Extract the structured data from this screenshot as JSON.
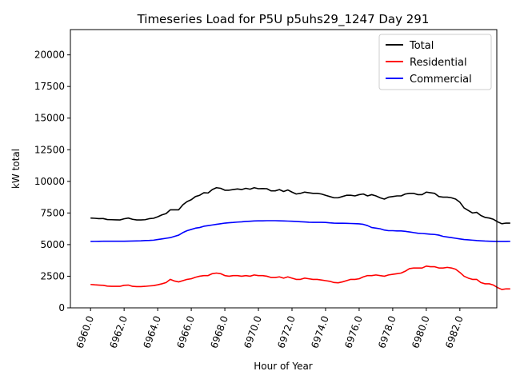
{
  "chart_data": {
    "type": "line",
    "title": "Timeseries Load for P5U p5uhs29_1247  Day 291",
    "xlabel": "Hour of Year",
    "ylabel": "kW total",
    "xlim": [
      6958.8,
      6984.2
    ],
    "ylim": [
      0,
      22000
    ],
    "x_ticks": [
      6960,
      6962,
      6964,
      6966,
      6968,
      6970,
      6972,
      6974,
      6976,
      6978,
      6980,
      6982
    ],
    "x_tick_labels": [
      "6960.0",
      "6962.0",
      "6964.0",
      "6966.0",
      "6968.0",
      "6970.0",
      "6972.0",
      "6974.0",
      "6976.0",
      "6978.0",
      "6980.0",
      "6982.0"
    ],
    "y_ticks": [
      0,
      2500,
      5000,
      7500,
      10000,
      12500,
      15000,
      17500,
      20000
    ],
    "y_tick_labels": [
      "0",
      "2500",
      "5000",
      "7500",
      "10000",
      "12500",
      "15000",
      "17500",
      "20000"
    ],
    "legend_position": "top-right",
    "x_start": 6960,
    "x_step": 0.25,
    "series": [
      {
        "name": "Total",
        "color": "#000000",
        "values": [
          7100,
          7080,
          7050,
          7060,
          6980,
          6970,
          6960,
          6950,
          7040,
          7100,
          7000,
          6950,
          6950,
          6970,
          7050,
          7080,
          7200,
          7350,
          7450,
          7750,
          7750,
          7750,
          8150,
          8400,
          8550,
          8800,
          8900,
          9100,
          9080,
          9350,
          9500,
          9450,
          9300,
          9300,
          9350,
          9400,
          9350,
          9450,
          9380,
          9500,
          9420,
          9430,
          9420,
          9250,
          9250,
          9350,
          9200,
          9320,
          9150,
          9000,
          9050,
          9150,
          9100,
          9050,
          9050,
          9000,
          8900,
          8800,
          8700,
          8700,
          8800,
          8900,
          8900,
          8850,
          8950,
          9000,
          8850,
          8950,
          8850,
          8700,
          8600,
          8750,
          8800,
          8850,
          8850,
          9000,
          9050,
          9050,
          8950,
          8950,
          9150,
          9100,
          9050,
          8800,
          8750,
          8750,
          8700,
          8600,
          8350,
          7900,
          7700,
          7500,
          7550,
          7300,
          7150,
          7100,
          7000,
          6800,
          6650,
          6700,
          6700
        ]
      },
      {
        "name": "Residential",
        "color": "#ff0000",
        "values": [
          1850,
          1820,
          1800,
          1780,
          1720,
          1700,
          1700,
          1700,
          1780,
          1800,
          1700,
          1680,
          1680,
          1700,
          1730,
          1760,
          1820,
          1900,
          2000,
          2250,
          2120,
          2050,
          2150,
          2250,
          2300,
          2420,
          2500,
          2550,
          2550,
          2700,
          2750,
          2700,
          2550,
          2500,
          2550,
          2550,
          2500,
          2550,
          2500,
          2600,
          2550,
          2550,
          2500,
          2400,
          2400,
          2450,
          2350,
          2450,
          2350,
          2250,
          2250,
          2350,
          2300,
          2250,
          2250,
          2200,
          2150,
          2100,
          2000,
          1980,
          2050,
          2150,
          2250,
          2250,
          2300,
          2450,
          2550,
          2550,
          2600,
          2550,
          2500,
          2600,
          2650,
          2700,
          2750,
          2900,
          3100,
          3150,
          3150,
          3150,
          3300,
          3250,
          3250,
          3150,
          3150,
          3200,
          3150,
          3050,
          2800,
          2500,
          2350,
          2250,
          2250,
          2000,
          1900,
          1900,
          1800,
          1600,
          1450,
          1500,
          1500
        ]
      },
      {
        "name": "Commercial",
        "color": "#0000ff",
        "values": [
          5250,
          5255,
          5260,
          5265,
          5265,
          5265,
          5270,
          5270,
          5270,
          5275,
          5280,
          5290,
          5300,
          5320,
          5330,
          5350,
          5400,
          5450,
          5500,
          5550,
          5650,
          5750,
          5950,
          6100,
          6200,
          6300,
          6350,
          6450,
          6500,
          6550,
          6600,
          6650,
          6700,
          6730,
          6750,
          6780,
          6800,
          6830,
          6850,
          6870,
          6880,
          6880,
          6890,
          6890,
          6890,
          6880,
          6870,
          6860,
          6850,
          6830,
          6810,
          6790,
          6770,
          6760,
          6760,
          6760,
          6750,
          6720,
          6700,
          6690,
          6690,
          6680,
          6670,
          6660,
          6640,
          6600,
          6500,
          6350,
          6300,
          6250,
          6150,
          6100,
          6100,
          6080,
          6080,
          6050,
          6000,
          5950,
          5900,
          5880,
          5850,
          5820,
          5800,
          5750,
          5650,
          5600,
          5550,
          5500,
          5450,
          5400,
          5380,
          5350,
          5320,
          5300,
          5280,
          5270,
          5260,
          5250,
          5250,
          5250,
          5260
        ]
      }
    ]
  }
}
